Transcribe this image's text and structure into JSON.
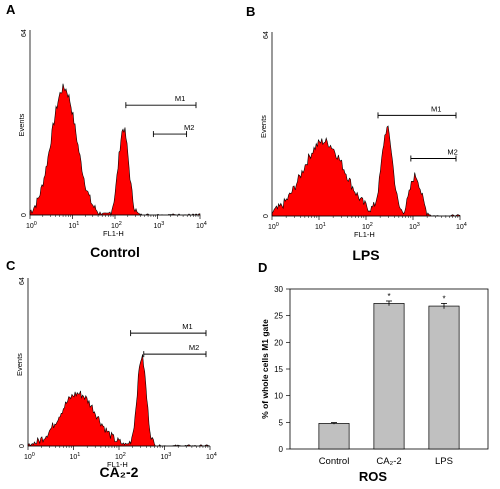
{
  "chart_data": [
    {
      "panel": "A",
      "type": "area",
      "caption": "Control",
      "xlabel": "FL1-H",
      "ylabel": "Events",
      "xscale": "log",
      "xlim": [
        1,
        10000
      ],
      "ylim": [
        0,
        64
      ],
      "x_ticks": [
        {
          "exp": "0"
        },
        {
          "exp": "1"
        },
        {
          "exp": "2"
        },
        {
          "exp": "3"
        },
        {
          "exp": "4"
        }
      ],
      "y_ticks": [
        "0",
        "64"
      ],
      "fill_color": "#ff0000",
      "peaks": [
        {
          "center_log10": 0.8,
          "height": 44,
          "width": 0.3
        },
        {
          "center_log10": 2.2,
          "height": 30,
          "width": 0.12
        }
      ],
      "gates": [
        {
          "label": "M1",
          "x_range": [
            180,
            10000
          ],
          "y": 38
        },
        {
          "label": "M2",
          "x_range": [
            800,
            6000
          ],
          "y": 28
        }
      ]
    },
    {
      "panel": "B",
      "type": "area",
      "caption": "LPS",
      "xlabel": "FL1-H",
      "ylabel": "Events",
      "xscale": "log",
      "xlim": [
        1,
        10000
      ],
      "ylim": [
        0,
        64
      ],
      "x_ticks": [
        {
          "exp": "0"
        },
        {
          "exp": "1"
        },
        {
          "exp": "2"
        },
        {
          "exp": "3"
        },
        {
          "exp": "4"
        }
      ],
      "y_ticks": [
        "0",
        "64"
      ],
      "fill_color": "#ff0000",
      "peaks": [
        {
          "center_log10": 1.1,
          "height": 26,
          "width": 0.45
        },
        {
          "center_log10": 2.45,
          "height": 30,
          "width": 0.12
        },
        {
          "center_log10": 3.05,
          "height": 14,
          "width": 0.12
        }
      ],
      "gates": [
        {
          "label": "M1",
          "x_range": [
            180,
            10000
          ],
          "y": 35
        },
        {
          "label": "M2",
          "x_range": [
            900,
            10000
          ],
          "y": 20
        }
      ]
    },
    {
      "panel": "C",
      "type": "area",
      "caption": "CA₂-2",
      "xlabel": "FL1-H",
      "ylabel": "Events",
      "xscale": "log",
      "xlim": [
        1,
        10000
      ],
      "ylim": [
        0,
        64
      ],
      "x_ticks": [
        {
          "exp": "0"
        },
        {
          "exp": "1"
        },
        {
          "exp": "2"
        },
        {
          "exp": "3"
        },
        {
          "exp": "4"
        }
      ],
      "y_ticks": [
        "0",
        "64"
      ],
      "fill_color": "#ff0000",
      "peaks": [
        {
          "center_log10": 1.1,
          "height": 20,
          "width": 0.4
        },
        {
          "center_log10": 2.5,
          "height": 34,
          "width": 0.1
        }
      ],
      "gates": [
        {
          "label": "M1",
          "x_range": [
            180,
            10000
          ],
          "y": 43
        },
        {
          "label": "M2",
          "x_range": [
            350,
            10000
          ],
          "y": 35
        }
      ]
    },
    {
      "panel": "D",
      "type": "bar",
      "title": "",
      "xlabel": "ROS",
      "ylabel": "% of whole cells M1 gate",
      "categories": [
        "Control",
        "CA₂-2",
        "LPS"
      ],
      "values": [
        4.8,
        27.3,
        26.8
      ],
      "errors": [
        0.15,
        0.45,
        0.5
      ],
      "significance": [
        "",
        "*",
        "*"
      ],
      "ylim": [
        0,
        30
      ],
      "y_ticks": [
        "0",
        "5",
        "10",
        "15",
        "20",
        "25",
        "30"
      ],
      "bar_color": "#c0c0c0"
    }
  ]
}
